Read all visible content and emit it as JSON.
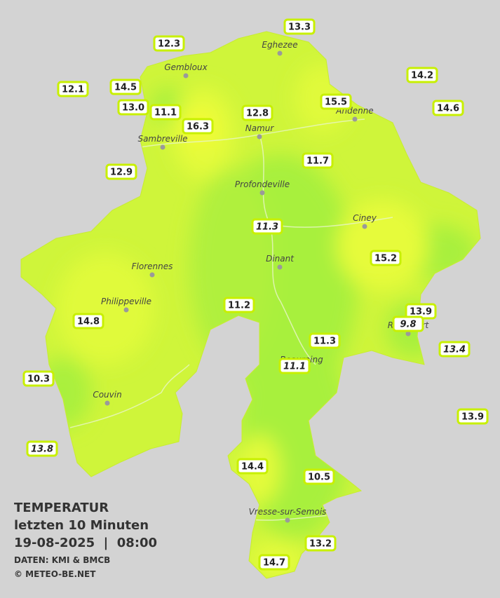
{
  "map": {
    "title": "TEMPERATUR",
    "subtitle": "letzten 10 Minuten",
    "datetime": "19-08-2025  |  08:00",
    "source": "DATEN: KMI & BMCB",
    "credit": "© METEO-BE.NET",
    "cities": [
      "Eghezee",
      "Gembloux",
      "Andenne",
      "Namur",
      "Sambreville",
      "Profondeville",
      "Ciney",
      "Dinant",
      "Florennes",
      "Philippeville",
      "Beauraing",
      "Rochefort",
      "Couvin",
      "Vresse-sur-Semois"
    ],
    "stations": [
      {
        "label": "13.3"
      },
      {
        "label": "12.3"
      },
      {
        "label": "14.2"
      },
      {
        "label": "12.1"
      },
      {
        "label": "14.5"
      },
      {
        "label": "13.0"
      },
      {
        "label": "11.1"
      },
      {
        "label": "16.3"
      },
      {
        "label": "12.8"
      },
      {
        "label": "15.5"
      },
      {
        "label": "14.6"
      },
      {
        "label": "12.9"
      },
      {
        "label": "11.7"
      },
      {
        "label": "11.3",
        "italic": true
      },
      {
        "label": "15.2"
      },
      {
        "label": "11.2"
      },
      {
        "label": "13.9"
      },
      {
        "label": "9.8",
        "italic": true
      },
      {
        "label": "14.8"
      },
      {
        "label": "11.3"
      },
      {
        "label": "13.4",
        "italic": true
      },
      {
        "label": "11.1",
        "italic": true
      },
      {
        "label": "10.3"
      },
      {
        "label": "13.9"
      },
      {
        "label": "13.8",
        "italic": true
      },
      {
        "label": "14.4"
      },
      {
        "label": "10.5"
      },
      {
        "label": "13.2"
      },
      {
        "label": "14.7"
      }
    ]
  }
}
